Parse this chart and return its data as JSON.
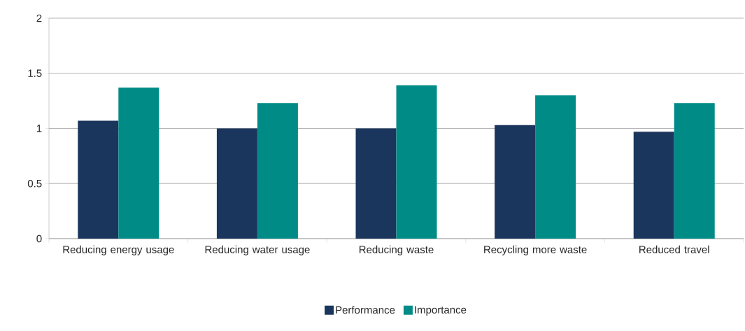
{
  "chart_data": {
    "type": "bar",
    "categories": [
      "Reducing energy usage",
      "Reducing water usage",
      "Reducing waste",
      "Recycling more waste",
      "Reduced travel"
    ],
    "series": [
      {
        "name": "Performance",
        "color": "#1b365d",
        "values": [
          1.07,
          1.0,
          1.0,
          1.03,
          0.97
        ]
      },
      {
        "name": "Importance",
        "color": "#008b87",
        "values": [
          1.37,
          1.23,
          1.39,
          1.3,
          1.23
        ]
      }
    ],
    "ylim": [
      0,
      2
    ],
    "yticks": [
      0,
      0.5,
      1,
      1.5,
      2
    ],
    "grid": "y",
    "legend": "bottom"
  }
}
